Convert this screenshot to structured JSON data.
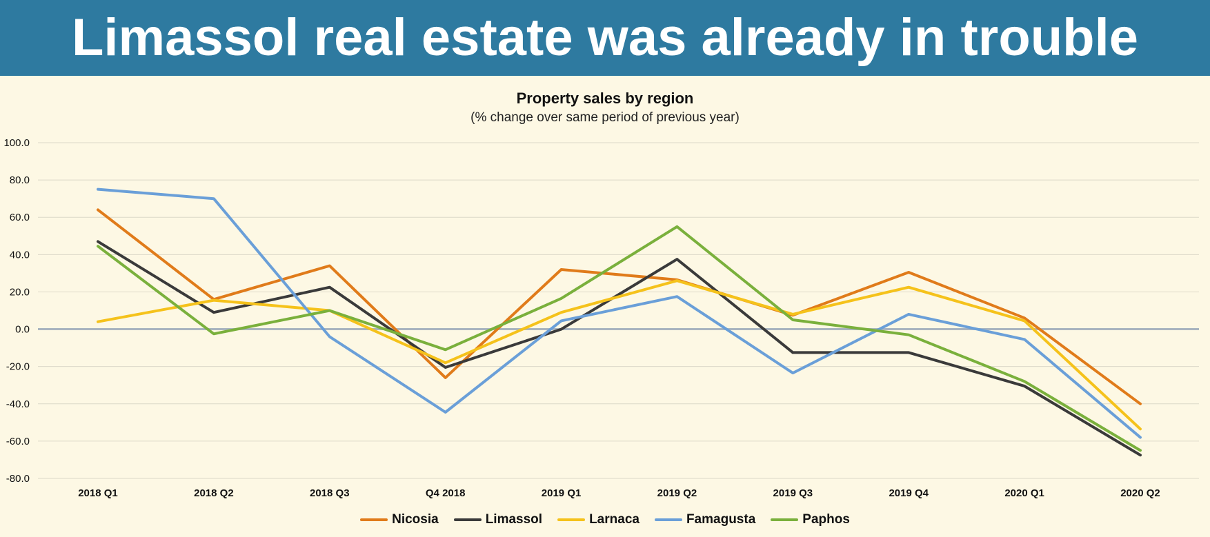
{
  "header": {
    "title": "Limassol real estate was already in trouble"
  },
  "chart_data": {
    "type": "line",
    "title": "Property sales by region",
    "subtitle": "(% change over same period of previous year)",
    "categories": [
      "2018 Q1",
      "2018 Q2",
      "2018 Q3",
      "Q4 2018",
      "2019 Q1",
      "2019 Q2",
      "2019 Q3",
      "2019 Q4",
      "2020 Q1",
      "2020 Q2"
    ],
    "y_ticks": [
      "100.0",
      "80.0",
      "60.0",
      "40.0",
      "20.0",
      "0.0",
      "-20.0",
      "-40.0",
      "-60.0",
      "-80.0"
    ],
    "ylim": [
      -80,
      100
    ],
    "grid": true,
    "legend_position": "bottom",
    "series": [
      {
        "name": "Nicosia",
        "color": "#e07b1a",
        "values": [
          64,
          16,
          34,
          -26,
          32,
          26.5,
          7.5,
          30.5,
          6,
          -40
        ]
      },
      {
        "name": "Limassol",
        "color": "#3a3a3a",
        "values": [
          47,
          9,
          22.5,
          -20.5,
          0,
          37.5,
          -12.5,
          -12.5,
          -30.5,
          -67.5
        ]
      },
      {
        "name": "Larnaca",
        "color": "#f5c21b",
        "values": [
          4,
          15.5,
          10,
          -18,
          9,
          26,
          8,
          22.5,
          4.5,
          -53.5
        ]
      },
      {
        "name": "Famagusta",
        "color": "#6a9fd8",
        "values": [
          75,
          70,
          -4,
          -44.5,
          4.5,
          17.5,
          -23.5,
          8,
          -5.5,
          -58
        ]
      },
      {
        "name": "Paphos",
        "color": "#7ab03c",
        "values": [
          44.5,
          -2.5,
          10,
          -11,
          16.5,
          55,
          5,
          -3,
          -28,
          -65
        ]
      }
    ]
  }
}
